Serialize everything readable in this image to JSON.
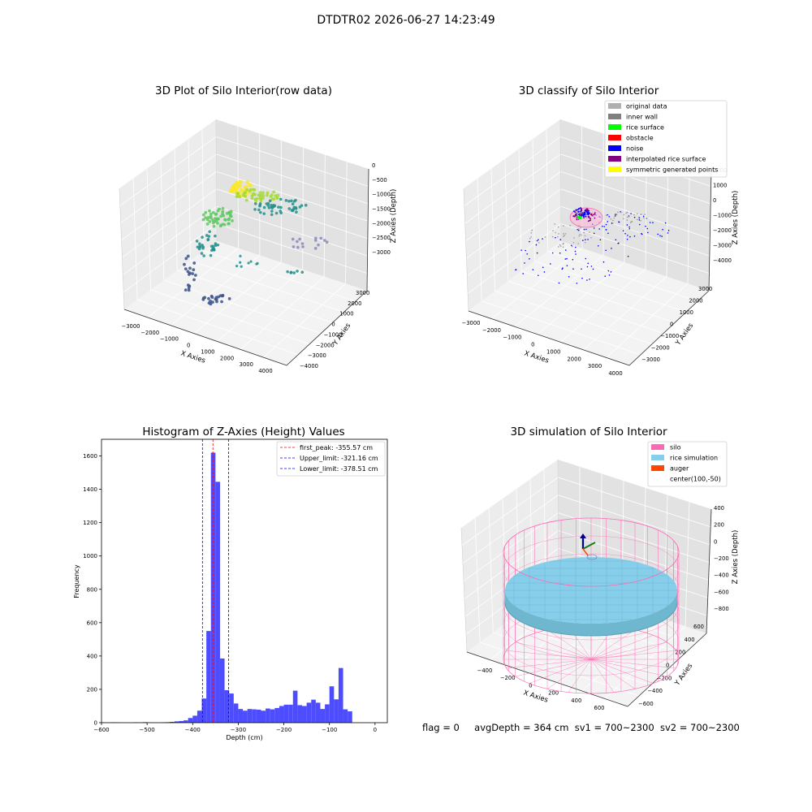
{
  "figure_title": "DTDTR02 2026-06-27 14:23:49",
  "status": {
    "flag": "flag = 0",
    "avg_depth": "avgDepth = 364 cm",
    "sv1": "sv1 = 700~2300",
    "sv2": "sv2 = 700~2300"
  },
  "chart_data": [
    {
      "type": "scatter",
      "projection": "3d",
      "title": "3D Plot of Silo Interior(row data)",
      "xlabel": "X Axies",
      "ylabel": "Y Axies",
      "zlabel": "Z Axies (Depth)",
      "x_ticks": [
        "−3000",
        "−2000",
        "−1000",
        "0",
        "1000",
        "2000",
        "3000",
        "4000"
      ],
      "y_ticks": [
        "−4000",
        "−3000",
        "−2000",
        "−1000",
        "0",
        "1000",
        "2000",
        "3000"
      ],
      "z_ticks": [
        "−3000",
        "−2500",
        "−2000",
        "−1500",
        "−1000",
        "−500",
        "0"
      ],
      "colormap": "viridis",
      "grid": true
    },
    {
      "type": "scatter",
      "projection": "3d",
      "title": "3D classify of Silo Interior",
      "xlabel": "X Axies",
      "ylabel": "Y Axies",
      "zlabel": "Z Axies (Depth)",
      "x_ticks": [
        "−3000",
        "−2000",
        "−1000",
        "0",
        "1000",
        "2000",
        "3000",
        "4000"
      ],
      "y_ticks": [
        "−3000",
        "−2000",
        "−1000",
        "0",
        "1000",
        "2000",
        "3000"
      ],
      "z_ticks": [
        "−4000",
        "−3000",
        "−2000",
        "−1000",
        "0",
        "1000",
        "2000"
      ],
      "z_partial_tick": "000",
      "legend": [
        {
          "label": "original data",
          "color": "#b0b0b0"
        },
        {
          "label": "inner wall",
          "color": "#808080"
        },
        {
          "label": "rice surface",
          "color": "#00ff00"
        },
        {
          "label": "obstacle",
          "color": "#ff0000"
        },
        {
          "label": "noise",
          "color": "#0000ff"
        },
        {
          "label": "interpolated rice surface",
          "color": "#800080"
        },
        {
          "label": "symmetric generated points",
          "color": "#ffff00"
        }
      ],
      "legend_position": "top-right",
      "grid": true
    },
    {
      "type": "bar",
      "title": "Histogram of Z-Axies (Height) Values",
      "xlabel": "Depth (cm)",
      "ylabel": "Frequency",
      "xlim": [
        -600,
        27
      ],
      "ylim": [
        0,
        1700
      ],
      "x_ticks": [
        -600,
        -500,
        -400,
        -300,
        -200,
        -100,
        0
      ],
      "y_ticks": [
        0,
        200,
        400,
        600,
        800,
        1000,
        1200,
        1400,
        1600
      ],
      "bar_color": "#4d4dff",
      "bin_width": 10,
      "bins": [
        {
          "x": -600,
          "v": 1
        },
        {
          "x": -590,
          "v": 0
        },
        {
          "x": -580,
          "v": 2
        },
        {
          "x": -570,
          "v": 1
        },
        {
          "x": -560,
          "v": 0
        },
        {
          "x": -550,
          "v": 0
        },
        {
          "x": -540,
          "v": 0
        },
        {
          "x": -530,
          "v": 2
        },
        {
          "x": -520,
          "v": 1
        },
        {
          "x": -510,
          "v": 3
        },
        {
          "x": -500,
          "v": 1
        },
        {
          "x": -490,
          "v": 0
        },
        {
          "x": -480,
          "v": 0
        },
        {
          "x": -470,
          "v": 2
        },
        {
          "x": -460,
          "v": 3
        },
        {
          "x": -450,
          "v": 5
        },
        {
          "x": -440,
          "v": 8
        },
        {
          "x": -430,
          "v": 10
        },
        {
          "x": -420,
          "v": 14
        },
        {
          "x": -410,
          "v": 28
        },
        {
          "x": -400,
          "v": 42
        },
        {
          "x": -390,
          "v": 72
        },
        {
          "x": -380,
          "v": 145
        },
        {
          "x": -370,
          "v": 550
        },
        {
          "x": -360,
          "v": 1620
        },
        {
          "x": -350,
          "v": 1445
        },
        {
          "x": -340,
          "v": 385
        },
        {
          "x": -330,
          "v": 195
        },
        {
          "x": -320,
          "v": 175
        },
        {
          "x": -310,
          "v": 115
        },
        {
          "x": -300,
          "v": 82
        },
        {
          "x": -290,
          "v": 72
        },
        {
          "x": -280,
          "v": 82
        },
        {
          "x": -270,
          "v": 80
        },
        {
          "x": -260,
          "v": 78
        },
        {
          "x": -250,
          "v": 72
        },
        {
          "x": -240,
          "v": 85
        },
        {
          "x": -230,
          "v": 80
        },
        {
          "x": -220,
          "v": 88
        },
        {
          "x": -210,
          "v": 100
        },
        {
          "x": -200,
          "v": 108
        },
        {
          "x": -190,
          "v": 108
        },
        {
          "x": -180,
          "v": 192
        },
        {
          "x": -170,
          "v": 105
        },
        {
          "x": -160,
          "v": 100
        },
        {
          "x": -150,
          "v": 120
        },
        {
          "x": -140,
          "v": 138
        },
        {
          "x": -130,
          "v": 120
        },
        {
          "x": -120,
          "v": 82
        },
        {
          "x": -110,
          "v": 110
        },
        {
          "x": -100,
          "v": 218
        },
        {
          "x": -90,
          "v": 140
        },
        {
          "x": -80,
          "v": 328
        },
        {
          "x": -70,
          "v": 80
        },
        {
          "x": -60,
          "v": 68
        }
      ],
      "vlines": [
        {
          "label": "first_peak: -355.57 cm",
          "x": -355.57,
          "color": "#ff0000"
        },
        {
          "label": "Upper_limit: -321.16 cm",
          "x": -321.16,
          "color": "#0000ff"
        },
        {
          "label": "Lower_limit: -378.51 cm",
          "x": -378.51,
          "color": "#0000ff"
        }
      ],
      "legend_position": "top-right"
    },
    {
      "type": "scatter",
      "projection": "3d",
      "title": "3D simulation of Silo Interior",
      "xlabel": "X Axies",
      "ylabel": "Y Axies",
      "zlabel": "Z Axies (Depth)",
      "x_ticks": [
        "−400",
        "−200",
        "0",
        "200",
        "400",
        "600"
      ],
      "y_ticks": [
        "−600",
        "−400",
        "−200",
        "0",
        "200",
        "400",
        "600"
      ],
      "z_ticks": [
        "−800",
        "−600",
        "−400",
        "−200",
        "0",
        "200",
        "400"
      ],
      "legend": [
        {
          "label": "silo",
          "color": "#ff69b4"
        },
        {
          "label": "rice simulation",
          "color": "#87ceeb"
        },
        {
          "label": "auger",
          "color": "#ff4500"
        },
        {
          "label": "center(100,-50)",
          "color": ""
        }
      ],
      "legend_position": "top-right",
      "grid": true
    }
  ]
}
